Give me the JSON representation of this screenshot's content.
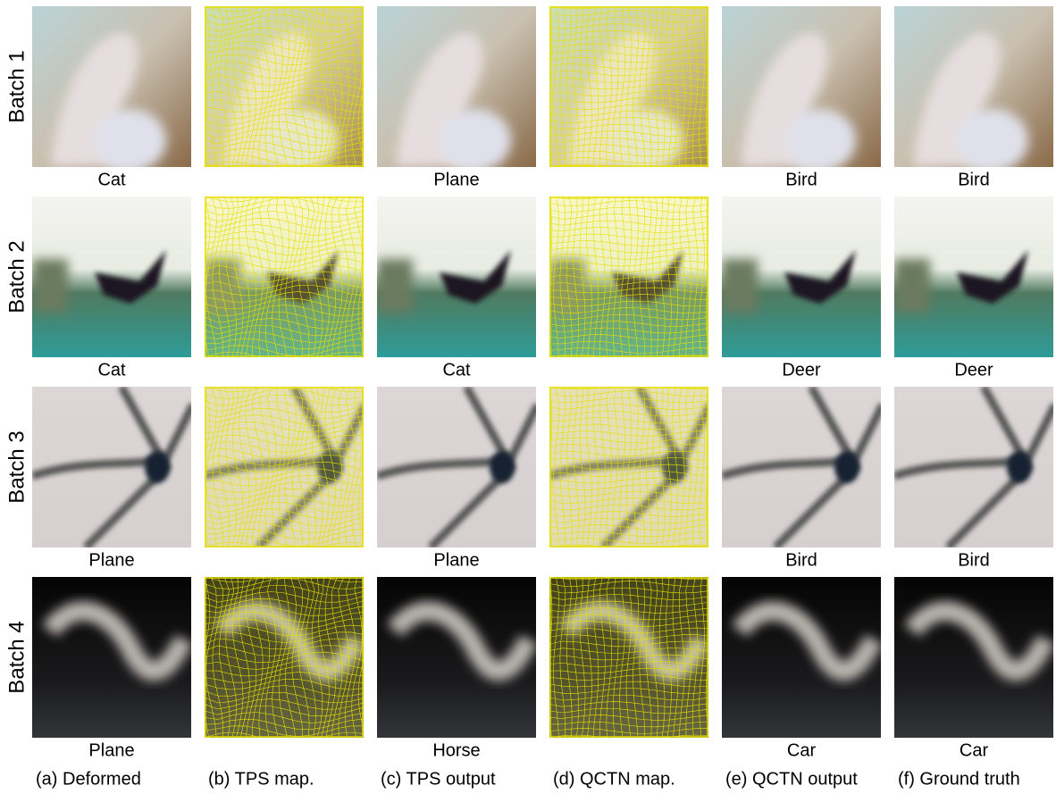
{
  "rows": [
    {
      "label": "Batch 1",
      "labels": [
        "Cat",
        null,
        "Plane",
        null,
        "Bird",
        "Bird"
      ]
    },
    {
      "label": "Batch 2",
      "labels": [
        "Cat",
        null,
        "Cat",
        null,
        "Deer",
        "Deer"
      ]
    },
    {
      "label": "Batch 3",
      "labels": [
        "Plane",
        null,
        "Plane",
        null,
        "Bird",
        "Bird"
      ]
    },
    {
      "label": "Batch 4",
      "labels": [
        "Plane",
        null,
        "Horse",
        null,
        "Car",
        "Car"
      ]
    }
  ],
  "captions": [
    "(a) Deformed",
    "(b) TPS map.",
    "(c) TPS output",
    "(d) QCTN map.",
    "(e) QCTN output",
    "(f) Ground truth"
  ]
}
